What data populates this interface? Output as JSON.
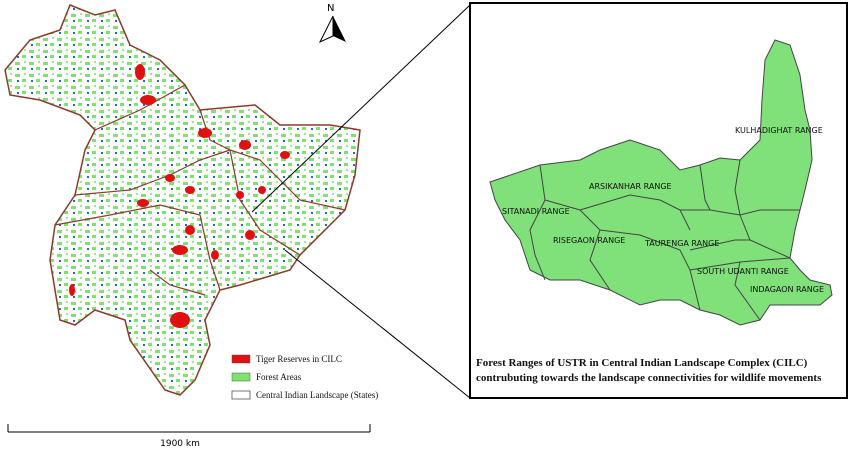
{
  "north_arrow": "N",
  "legend": {
    "items": [
      "Tiger Reserves in CILC",
      "Forest Areas",
      "Central Indian Landscape (States)"
    ]
  },
  "scale_bar": "1900 km",
  "inset": {
    "ranges": [
      "KULHADIGHAT RANGE",
      "ARSIKANHAR RANGE",
      "SITANADI RANGE",
      "RISEGAON RANGE",
      "TAURENGA RANGE",
      "SOUTH UDANTI RANGE",
      "INDAGAON RANGE"
    ],
    "caption": [
      "Forest Ranges of USTR in Central Indian Landscape Complex (CILC)",
      "contrubuting towards the landscape connectivities for wildlife movements"
    ]
  }
}
